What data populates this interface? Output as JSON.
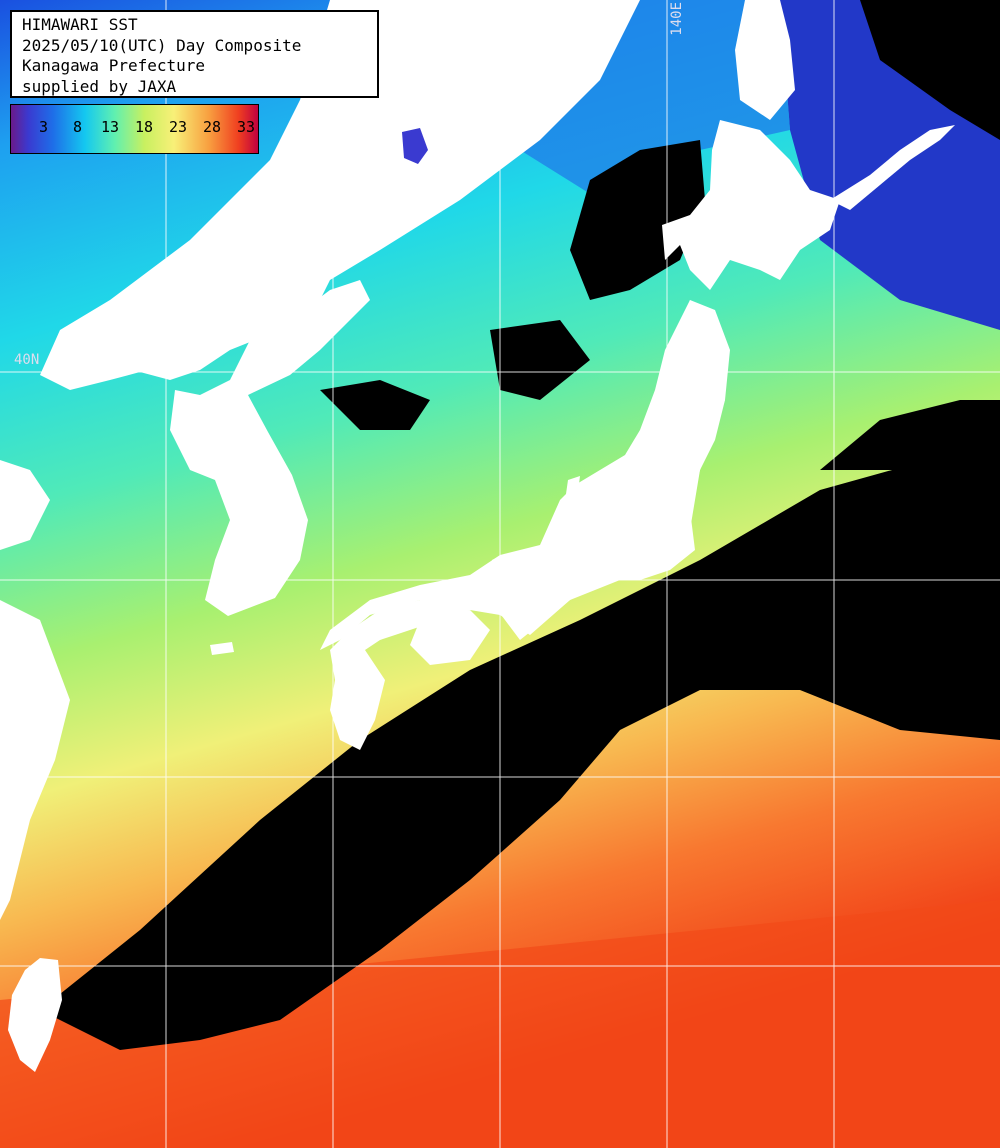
{
  "title": {
    "line1": "HIMAWARI SST",
    "line2": "2025/05/10(UTC) Day Composite",
    "line3": "Kanagawa Prefecture",
    "line4": "supplied by JAXA"
  },
  "legend": {
    "labels": [
      "3",
      "8",
      "13",
      "18",
      "23",
      "28",
      "33"
    ]
  },
  "grid_labels": {
    "longitude": "140E",
    "latitude": "40N"
  },
  "colors": {
    "land": "#ffffff",
    "cloud_no_data": "#000000",
    "grid": "#ffffff",
    "cold": "#1e6ee8",
    "cool": "#14c8f0",
    "mild": "#60f0b0",
    "warm": "#f8f078",
    "hot": "#f04020"
  }
}
